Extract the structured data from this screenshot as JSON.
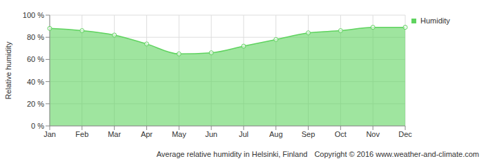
{
  "chart_data": {
    "type": "area",
    "title": "Average relative humidity in Helsinki, Finland",
    "annotations": [
      "Copyright © 2016 www.weather-and-climate.com"
    ],
    "y_label": "Relative humidity",
    "categories": [
      "Jan",
      "Feb",
      "Mar",
      "Apr",
      "May",
      "Jun",
      "Jul",
      "Aug",
      "Sep",
      "Oct",
      "Nov",
      "Dec"
    ],
    "series": [
      {
        "name": "Humidity",
        "color": "#5fd35f",
        "values": [
          88,
          86,
          82,
          74,
          65,
          66,
          72,
          78,
          84,
          86,
          89,
          89
        ]
      }
    ],
    "ylim": [
      0,
      100
    ],
    "yticks": [
      {
        "value": 0,
        "label": "0 %"
      },
      {
        "value": 20,
        "label": "20 %"
      },
      {
        "value": 40,
        "label": "40 %"
      },
      {
        "value": 60,
        "label": "60 %"
      },
      {
        "value": 80,
        "label": "80 %"
      },
      {
        "value": 100,
        "label": "100 %"
      }
    ],
    "grid": true,
    "legend": "right",
    "marker": "circle"
  }
}
